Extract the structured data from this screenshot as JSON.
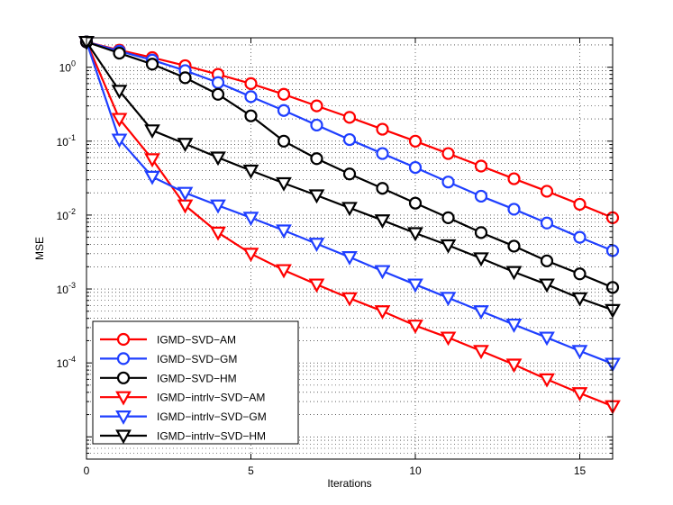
{
  "chart_data": {
    "type": "line",
    "title": "",
    "xlabel": "Iterations",
    "ylabel": "MSE",
    "xlim": [
      0,
      16
    ],
    "ylim": [
      5e-06,
      2.5
    ],
    "yscale": "log",
    "grid": true,
    "legend_position": "bottom-left",
    "x_ticks": [
      0,
      5,
      10,
      15
    ],
    "x_tick_labels": [
      "0",
      "5",
      "10",
      "15"
    ],
    "y_ticks": [
      0.0001,
      0.001,
      0.01,
      0.1,
      1
    ],
    "y_tick_labels": [
      {
        "base": "10",
        "exp": "-4"
      },
      {
        "base": "10",
        "exp": "-3"
      },
      {
        "base": "10",
        "exp": "-2"
      },
      {
        "base": "10",
        "exp": "-1"
      },
      {
        "base": "10",
        "exp": "0"
      }
    ],
    "x": [
      0,
      1,
      2,
      3,
      4,
      5,
      6,
      7,
      8,
      9,
      10,
      11,
      12,
      13,
      14,
      15,
      16
    ],
    "series": [
      {
        "name": "IGMD−SVD−AM",
        "color": "#ff0000",
        "marker": "circle",
        "values": [
          2.2,
          1.7,
          1.35,
          1.05,
          0.8,
          0.6,
          0.43,
          0.3,
          0.21,
          0.145,
          0.1,
          0.068,
          0.046,
          0.031,
          0.021,
          0.014,
          0.0092
        ]
      },
      {
        "name": "IGMD−SVD−GM",
        "color": "#1f3fff",
        "marker": "circle",
        "values": [
          2.2,
          1.65,
          1.25,
          0.9,
          0.62,
          0.4,
          0.26,
          0.165,
          0.105,
          0.068,
          0.044,
          0.028,
          0.018,
          0.012,
          0.0078,
          0.005,
          0.0033
        ]
      },
      {
        "name": "IGMD−SVD−HM",
        "color": "#000000",
        "marker": "circle",
        "values": [
          2.2,
          1.55,
          1.1,
          0.72,
          0.43,
          0.22,
          0.1,
          0.058,
          0.036,
          0.023,
          0.0145,
          0.0092,
          0.0058,
          0.0038,
          0.0024,
          0.0016,
          0.00105
        ]
      },
      {
        "name": "IGMD−intrlv−SVD−AM",
        "color": "#ff0000",
        "marker": "triangle-down",
        "values": [
          2.2,
          0.2,
          0.057,
          0.0135,
          0.0058,
          0.003,
          0.0018,
          0.00115,
          0.00075,
          0.0005,
          0.00032,
          0.00022,
          0.000145,
          9.5e-05,
          6e-05,
          3.9e-05,
          2.6e-05
        ]
      },
      {
        "name": "IGMD−intrlv−SVD−GM",
        "color": "#1f3fff",
        "marker": "triangle-down",
        "values": [
          2.2,
          0.105,
          0.033,
          0.02,
          0.0135,
          0.0092,
          0.0062,
          0.0041,
          0.0027,
          0.00175,
          0.00115,
          0.00076,
          0.0005,
          0.00033,
          0.00022,
          0.000145,
          9.75e-05
        ]
      },
      {
        "name": "IGMD−intrlv−SVD−HM",
        "color": "#000000",
        "marker": "triangle-down",
        "values": [
          2.2,
          0.48,
          0.14,
          0.092,
          0.06,
          0.04,
          0.027,
          0.0185,
          0.0125,
          0.0085,
          0.0057,
          0.0039,
          0.0026,
          0.0017,
          0.00115,
          0.00075,
          0.00052
        ]
      }
    ]
  }
}
